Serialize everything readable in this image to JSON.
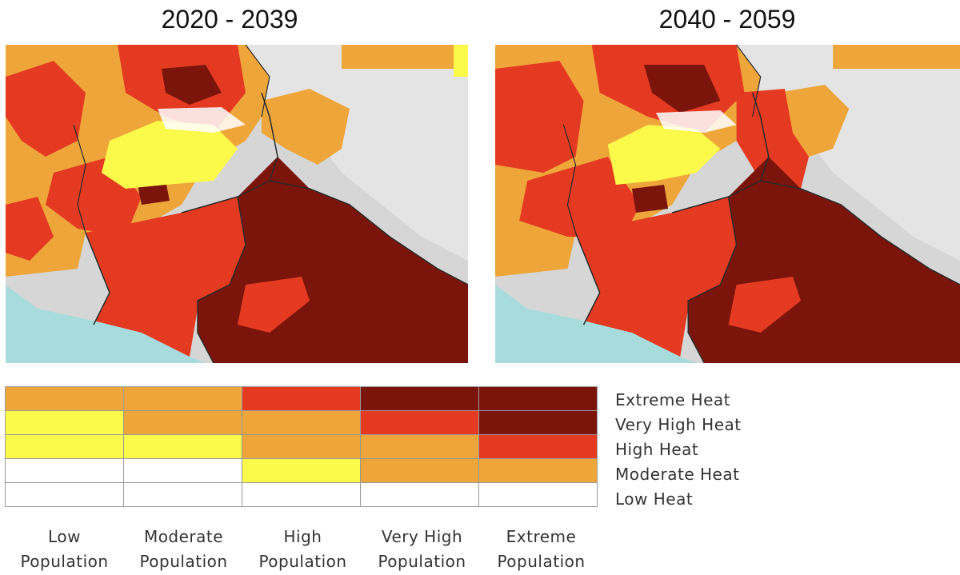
{
  "maps": [
    {
      "title": "2020 - 2039"
    },
    {
      "title": "2040 - 2059"
    }
  ],
  "colors": {
    "low": "#ffffff",
    "yellow": "#fbf94a",
    "orange": "#eea63a",
    "red": "#e43a22",
    "dark": "#7b150c",
    "sea": "#a8dcdc",
    "terrain": "#d6d6d6",
    "border": "#2a2a2a"
  },
  "legend": {
    "heat_levels": [
      "Extreme Heat",
      "Very High Heat",
      "High Heat",
      "Moderate Heat",
      "Low Heat"
    ],
    "population_levels": [
      {
        "line1": "Low",
        "line2": "Population"
      },
      {
        "line1": "Moderate",
        "line2": "Population"
      },
      {
        "line1": "High",
        "line2": "Population"
      },
      {
        "line1": "Very High",
        "line2": "Population"
      },
      {
        "line1": "Extreme",
        "line2": "Population"
      }
    ],
    "matrix": [
      [
        "orange",
        "orange",
        "red",
        "dark",
        "dark"
      ],
      [
        "yellow",
        "orange",
        "orange",
        "red",
        "dark"
      ],
      [
        "yellow",
        "yellow",
        "orange",
        "orange",
        "red"
      ],
      [
        "low",
        "low",
        "yellow",
        "orange",
        "orange"
      ],
      [
        "low",
        "low",
        "low",
        "low",
        "low"
      ]
    ]
  }
}
